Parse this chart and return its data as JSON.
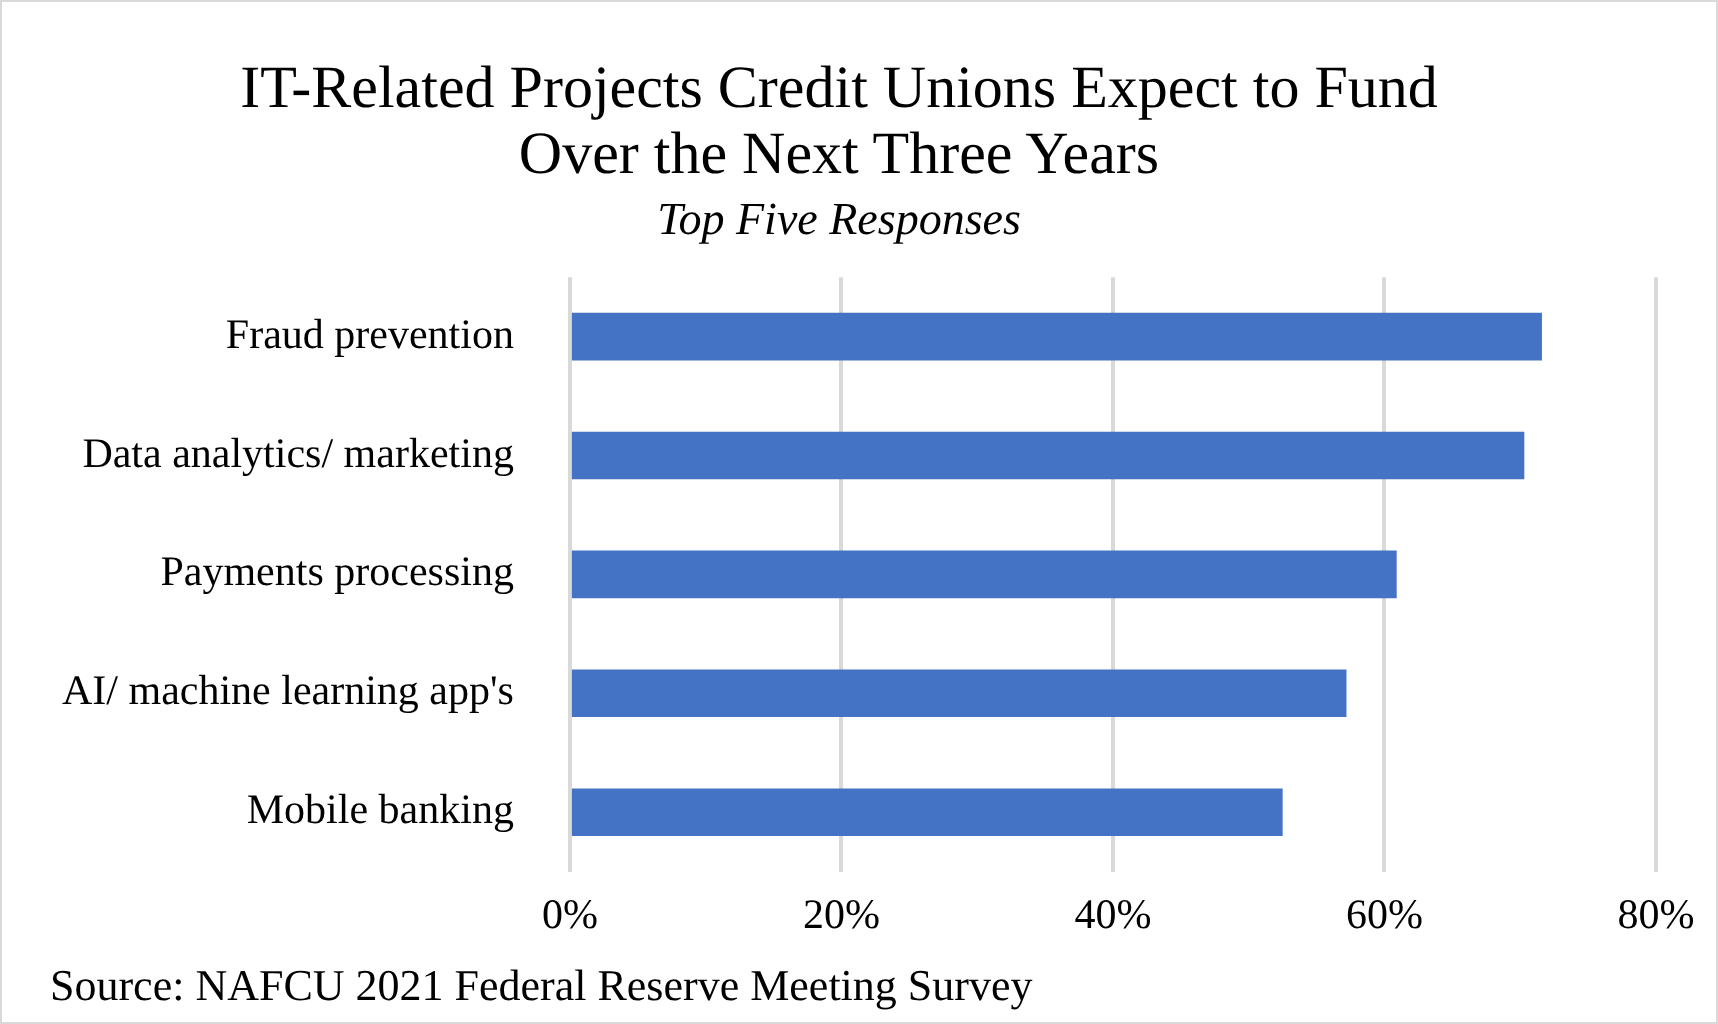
{
  "chart_data": {
    "type": "bar",
    "orientation": "horizontal",
    "title": [
      "IT-Related Projects Credit Unions Expect to Fund",
      "Over the Next Three Years"
    ],
    "subtitle": "Top Five Responses",
    "categories": [
      "Fraud prevention",
      "Data analytics/ marketing",
      "Payments processing",
      "AI/ machine learning app's",
      "Mobile banking"
    ],
    "values": [
      71.6,
      70.3,
      60.9,
      57.2,
      52.5
    ],
    "color": "#4472c4",
    "xlim": [
      0,
      80
    ],
    "xticks": [
      {
        "value": 0,
        "label": "0%"
      },
      {
        "value": 20,
        "label": "20%"
      },
      {
        "value": 40,
        "label": "40%"
      },
      {
        "value": 60,
        "label": "60%"
      },
      {
        "value": 80,
        "label": "80%"
      }
    ],
    "grid": "x",
    "legend": false,
    "annotations": [
      "Source: NAFCU 2021 Federal Reserve Meeting Survey"
    ]
  }
}
